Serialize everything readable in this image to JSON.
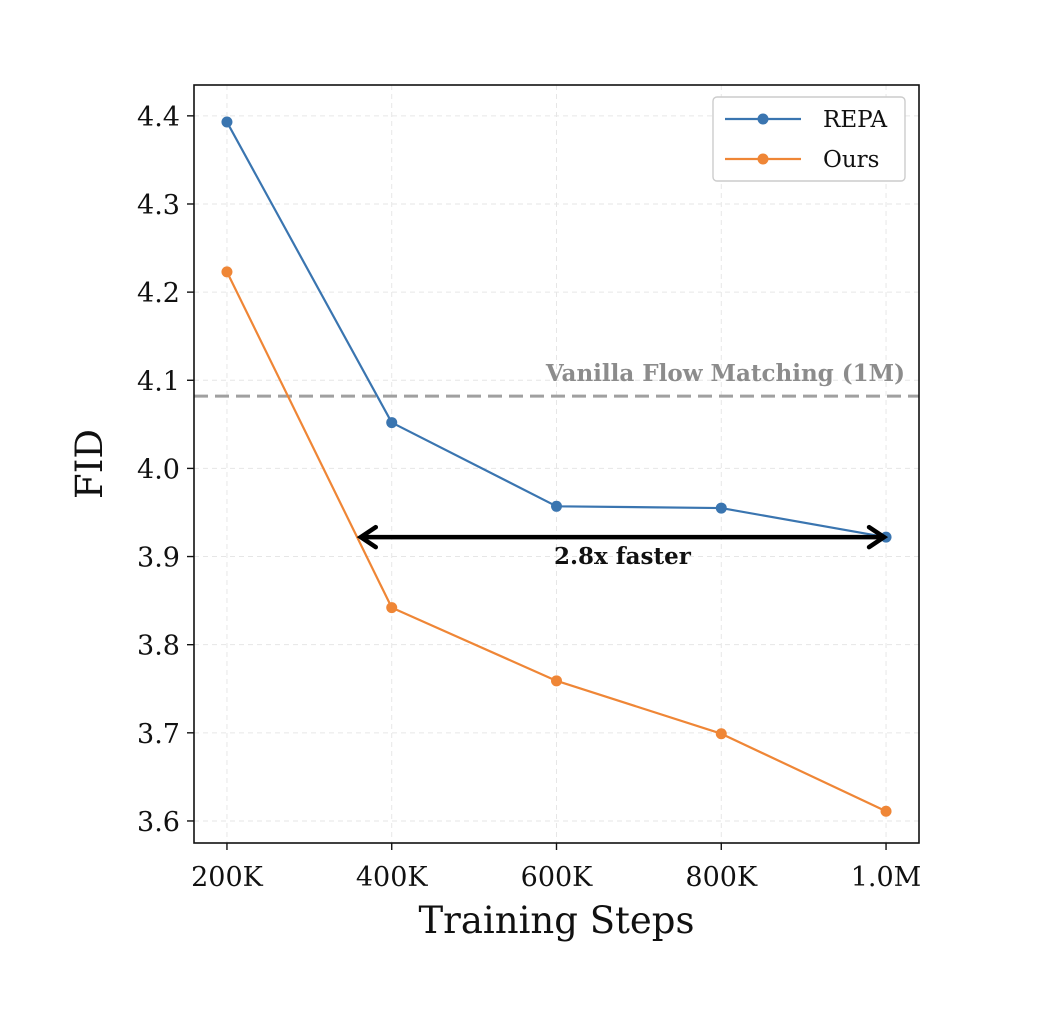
{
  "chart_data": {
    "type": "line",
    "xlabel": "Training Steps",
    "ylabel": "FID",
    "x": [
      200000,
      400000,
      600000,
      800000,
      1000000
    ],
    "x_tick_labels": [
      "200K",
      "400K",
      "600K",
      "800K",
      "1.0M"
    ],
    "y_ticks": [
      3.6,
      3.7,
      3.8,
      3.9,
      4.0,
      4.1,
      4.2,
      4.3,
      4.4
    ],
    "y_tick_labels": [
      "3.6",
      "3.7",
      "3.8",
      "3.9",
      "4.0",
      "4.1",
      "4.2",
      "4.3",
      "4.4"
    ],
    "xlim": [
      160000,
      1040000
    ],
    "ylim": [
      3.575,
      4.435
    ],
    "grid": true,
    "legend_position": "top-right",
    "series": [
      {
        "name": "REPA",
        "color": "#3a75b0",
        "values": [
          4.393,
          4.052,
          3.957,
          3.955,
          3.922
        ]
      },
      {
        "name": "Ours",
        "color": "#ef8636",
        "values": [
          4.223,
          3.842,
          3.759,
          3.699,
          3.611
        ]
      }
    ],
    "reference_line": {
      "label": "Vanilla Flow Matching (1M)",
      "y": 4.082,
      "color": "#a0a0a0"
    },
    "annotation": {
      "text": "2.8x faster",
      "y": 3.922,
      "x_start": 360000,
      "x_end": 1000000
    }
  }
}
